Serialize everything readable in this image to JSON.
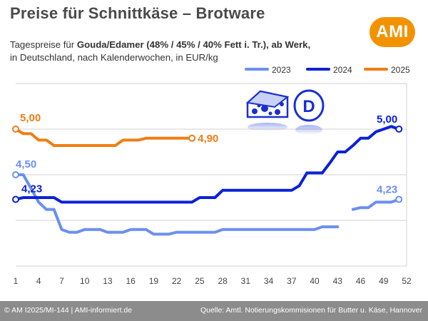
{
  "header": {
    "title": "Preise für Schnittkäse – Brotware",
    "subtitle_pre": "Tagespreise für ",
    "subtitle_bold": "Gouda/Edamer (48% / 45% / 40% Fett i. Tr.), ab Werk,",
    "subtitle_line2": "in Deutschland, nach Kalenderwochen, in EUR/kg",
    "logo": "AMI"
  },
  "footer": {
    "left": "© AM I2025/MI-144 | AMI-informiert.de",
    "right": "Quelle: Amtl. Notierungskommisionen für Butter u. Käse, Hannover"
  },
  "icons": {
    "cheese": "cheese-icon",
    "country": "germany-d-icon",
    "country_letter": "D"
  },
  "colors": {
    "2023": "#6b8ff0",
    "2024": "#0a22d6",
    "2025": "#f07d13",
    "grid": "#d0d0d0",
    "logo": "#f39200",
    "footer": "#8c8c8c"
  },
  "chart_data": {
    "type": "line",
    "xlim": [
      1,
      52
    ],
    "ylim": [
      3.5,
      5.5
    ],
    "grid": true,
    "legend_position": "top-right",
    "x_ticks": [
      1,
      4,
      7,
      10,
      13,
      16,
      19,
      22,
      25,
      28,
      31,
      34,
      37,
      40,
      43,
      46,
      49,
      52
    ],
    "series": [
      {
        "name": "2023",
        "x": [
          1,
          2,
          3,
          4,
          5,
          6,
          7,
          8,
          9,
          10,
          11,
          12,
          13,
          14,
          15,
          16,
          17,
          18,
          19,
          20,
          21,
          22,
          23,
          24,
          25,
          26,
          27,
          28,
          29,
          30,
          31,
          32,
          33,
          34,
          35,
          36,
          37,
          38,
          39,
          40,
          41,
          42,
          43,
          null,
          45,
          46,
          47,
          48,
          49,
          50,
          51
        ],
        "y": [
          4.5,
          4.5,
          4.35,
          4.2,
          4.12,
          4.12,
          3.9,
          3.87,
          3.87,
          3.9,
          3.9,
          3.9,
          3.87,
          3.87,
          3.87,
          3.9,
          3.9,
          3.9,
          3.85,
          3.85,
          3.85,
          3.87,
          3.87,
          3.87,
          3.87,
          3.87,
          3.87,
          3.9,
          3.9,
          3.9,
          3.9,
          3.9,
          3.9,
          3.9,
          3.9,
          3.9,
          3.9,
          3.9,
          3.9,
          3.9,
          3.93,
          3.93,
          3.93,
          null,
          4.12,
          4.14,
          4.14,
          4.2,
          4.2,
          4.2,
          4.23
        ],
        "labels": [
          {
            "x": 1,
            "text": "4,50"
          },
          {
            "x": 51,
            "text": "4,23"
          }
        ]
      },
      {
        "name": "2024",
        "x": [
          1,
          2,
          3,
          4,
          5,
          6,
          7,
          8,
          9,
          10,
          11,
          12,
          13,
          14,
          15,
          16,
          17,
          18,
          19,
          20,
          21,
          22,
          23,
          24,
          25,
          26,
          27,
          28,
          29,
          30,
          31,
          32,
          33,
          34,
          35,
          36,
          37,
          38,
          39,
          40,
          41,
          42,
          43,
          44,
          45,
          46,
          47,
          48,
          49,
          50,
          51
        ],
        "y": [
          4.23,
          4.25,
          4.25,
          4.25,
          4.25,
          4.25,
          4.2,
          4.2,
          4.2,
          4.2,
          4.2,
          4.2,
          4.2,
          4.2,
          4.2,
          4.2,
          4.2,
          4.2,
          4.2,
          4.2,
          4.2,
          4.2,
          4.2,
          4.2,
          4.25,
          4.25,
          4.25,
          4.33,
          4.33,
          4.33,
          4.33,
          4.33,
          4.33,
          4.33,
          4.33,
          4.33,
          4.33,
          4.38,
          4.52,
          4.52,
          4.52,
          4.63,
          4.75,
          4.75,
          4.82,
          4.9,
          4.9,
          4.97,
          5.0,
          5.03,
          5.0
        ],
        "labels": [
          {
            "x": 1,
            "text": "4,23"
          },
          {
            "x": 51,
            "text": "5,00"
          }
        ]
      },
      {
        "name": "2025",
        "x": [
          1,
          2,
          3,
          4,
          5,
          6,
          7,
          8,
          9,
          10,
          11,
          12,
          13,
          14,
          15,
          16,
          17,
          18,
          19,
          20,
          21,
          22,
          23,
          24
        ],
        "y": [
          5.0,
          4.95,
          4.95,
          4.88,
          4.88,
          4.82,
          4.82,
          4.82,
          4.82,
          4.82,
          4.82,
          4.82,
          4.82,
          4.82,
          4.88,
          4.88,
          4.88,
          4.9,
          4.9,
          4.9,
          4.9,
          4.9,
          4.9,
          4.9
        ],
        "labels": [
          {
            "x": 1,
            "text": "5,00"
          },
          {
            "x": 24,
            "text": "4,90"
          }
        ]
      }
    ]
  }
}
